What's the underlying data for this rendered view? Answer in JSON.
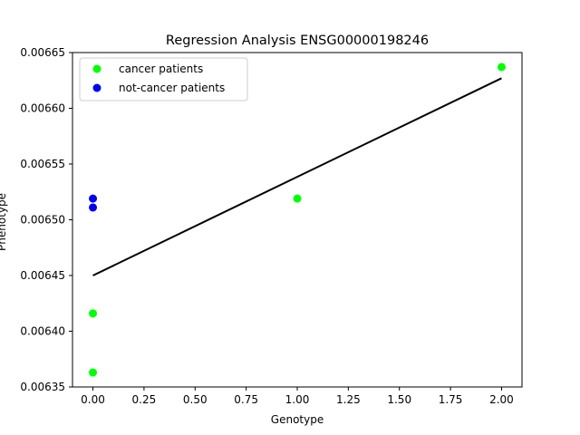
{
  "chart_data": {
    "type": "scatter",
    "title": "Regression Analysis ENSG00000198246",
    "xlabel": "Genotype",
    "ylabel": "Phenotype",
    "xlim": [
      -0.1,
      2.1
    ],
    "ylim": [
      0.00635,
      0.00665
    ],
    "x_ticks": [
      0.0,
      0.25,
      0.5,
      0.75,
      1.0,
      1.25,
      1.5,
      1.75,
      2.0
    ],
    "x_tick_labels": [
      "0.00",
      "0.25",
      "0.50",
      "0.75",
      "1.00",
      "1.25",
      "1.50",
      "1.75",
      "2.00"
    ],
    "y_ticks": [
      0.00635,
      0.0064,
      0.00645,
      0.0065,
      0.00655,
      0.0066,
      0.00665
    ],
    "y_tick_labels": [
      "0.00635",
      "0.00640",
      "0.00645",
      "0.00650",
      "0.00655",
      "0.00660",
      "0.00665"
    ],
    "grid": false,
    "legend_position": "top-left",
    "series": [
      {
        "name": "cancer patients",
        "color": "#00ff00",
        "points": [
          {
            "x": 0.0,
            "y": 0.006363
          },
          {
            "x": 0.0,
            "y": 0.006416
          },
          {
            "x": 1.0,
            "y": 0.006519
          },
          {
            "x": 2.0,
            "y": 0.006637
          }
        ]
      },
      {
        "name": "not-cancer patients",
        "color": "#0000ee",
        "points": [
          {
            "x": 0.0,
            "y": 0.006511
          },
          {
            "x": 0.0,
            "y": 0.006519
          }
        ]
      }
    ],
    "regression_line": {
      "color": "#000000",
      "x": [
        0.0,
        2.0
      ],
      "y": [
        0.00645,
        0.006627
      ]
    }
  }
}
